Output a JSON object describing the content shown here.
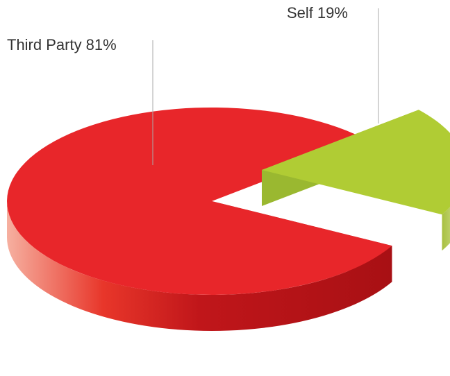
{
  "chart_data": {
    "type": "pie3d",
    "categories": [
      "Third Party",
      "Self"
    ],
    "values": [
      81,
      19
    ],
    "value_labels": [
      "81%",
      "19%"
    ],
    "colors": [
      "#e8262a",
      "#b0cc34"
    ]
  }
}
